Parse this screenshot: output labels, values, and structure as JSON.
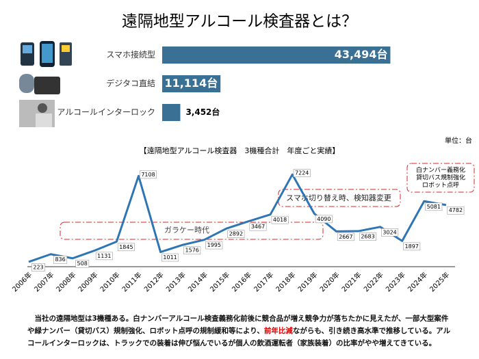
{
  "title": "遠隔地型アルコール検査器とは？",
  "chart_data": [
    {
      "type": "hbar",
      "categories": [
        "スマホ接続型",
        "デジタコ直結",
        "アルコールインターロック"
      ],
      "values": [
        43494,
        11114,
        3452
      ],
      "value_labels": [
        "43,494台",
        "11,114台",
        "3,452台"
      ],
      "color": "#3a7094",
      "xlim": [
        0,
        45000
      ]
    },
    {
      "type": "line",
      "title": "【遠隔地型アルコール検査器　3機種合計　年度ごと実績】",
      "unit_label": "単位：台",
      "categories": [
        "2006年",
        "2007年",
        "2008年",
        "2009年",
        "2010年",
        "2011年",
        "2012年",
        "2013年",
        "2014年",
        "2015年",
        "2016年",
        "2017年",
        "2018年",
        "2019年",
        "2020年",
        "2021年",
        "2022年",
        "2023年",
        "2024年",
        "2025年"
      ],
      "values": [
        223,
        836,
        508,
        1131,
        1845,
        7108,
        1011,
        1576,
        1995,
        2892,
        3467,
        4018,
        7224,
        4090,
        2667,
        2683,
        3024,
        1897,
        5081,
        4782
      ],
      "color": "#2e75b6",
      "ylim": [
        0,
        8000
      ],
      "annotations": [
        "ガラケー時代",
        "スマホ切り替え時、検知器変更",
        [
          "白ナンバー義務化",
          "貸切バス規制強化",
          "ロボット点呼"
        ]
      ]
    }
  ],
  "footer": {
    "before": "当社の遠隔地型は3機種ある。白ナンバーアルコール検査義務化前後に競合品が増え競争力が落ちたかに見えたが、一部大型案件や緑ナンバー（貸切バス）規制強化、ロボット点呼の規制緩和等により、",
    "highlight": "前年比減",
    "after": "ながらも、引き続き高水準で推移している。アルコールインターロックは、トラックでの装着は伸び悩んでいるが個人の飲酒運転者（家族装着）の比率がやや増えてきている。"
  }
}
